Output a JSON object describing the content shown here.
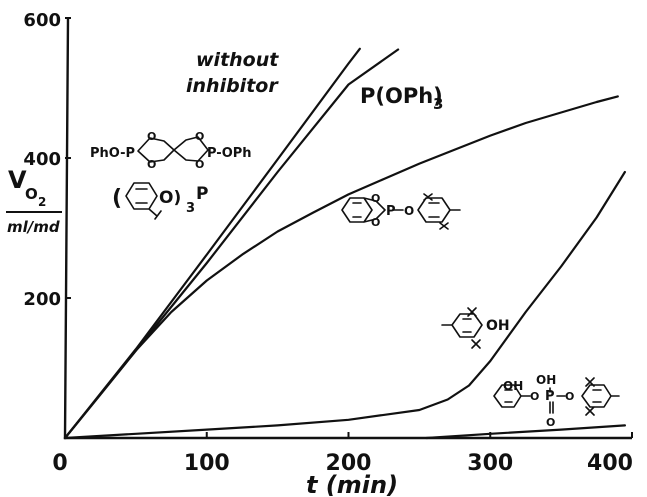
{
  "chart_data": {
    "type": "line",
    "xlabel": "t (min)",
    "ylabel": "V_O2",
    "ylabel_main": "V",
    "ylabel_sub": "O",
    "ylabel_sub2": "2",
    "yunit": "ml/md",
    "xlim": [
      0,
      400
    ],
    "ylim": [
      0,
      600
    ],
    "x_ticks": [
      0,
      100,
      200,
      300,
      400
    ],
    "x_tick_labels": [
      "0",
      "100",
      "200",
      "300",
      "400"
    ],
    "y_ticks": [
      200,
      400,
      600
    ],
    "y_tick_labels": [
      "200",
      "400",
      "600"
    ],
    "grid": false,
    "series": [
      {
        "name": "without inhibitor",
        "x": [
          0,
          50,
          100,
          150,
          200,
          208
        ],
        "y": [
          0,
          127,
          262,
          398,
          535,
          556
        ]
      },
      {
        "name": "P(OPh)3",
        "x": [
          0,
          50,
          100,
          150,
          200,
          235
        ],
        "y": [
          0,
          125,
          250,
          380,
          505,
          555
        ]
      },
      {
        "name": "pentaerythritol diphosphite / tris(aryl) phosphite",
        "x": [
          0,
          25,
          50,
          75,
          100,
          125,
          150,
          175,
          200,
          225,
          250,
          275,
          300,
          325,
          350,
          375,
          390
        ],
        "y": [
          0,
          62,
          125,
          180,
          225,
          262,
          295,
          322,
          348,
          370,
          392,
          412,
          432,
          450,
          465,
          480,
          488
        ]
      },
      {
        "name": "hindered phenol",
        "x": [
          0,
          50,
          100,
          150,
          200,
          250,
          270,
          285,
          300,
          325,
          350,
          375,
          395
        ],
        "y": [
          0,
          6,
          12,
          18,
          26,
          40,
          55,
          75,
          110,
          180,
          245,
          315,
          380
        ]
      },
      {
        "name": "phosphite ester",
        "x": [
          255,
          300,
          350,
          395
        ],
        "y": [
          0,
          6,
          12,
          18
        ]
      }
    ],
    "annotations": {
      "without_inhibitor_1": "without",
      "without_inhibitor_2": "inhibitor",
      "p_oph3": "P(OPh)",
      "p_oph3_sub": "3",
      "spiro_left": "PhO-P",
      "spiro_right": "P-OPh",
      "o": "O",
      "triaryl_paren_left": "(",
      "triaryl_o": "O)",
      "triaryl_sub": "3",
      "triaryl_p": "P",
      "catechol_p": "P",
      "catechol_o": "O",
      "phenol_oh": "OH",
      "ester_oh1": "OH",
      "ester_oh2": "OH",
      "ester_p": "P",
      "ester_o": "O"
    }
  }
}
